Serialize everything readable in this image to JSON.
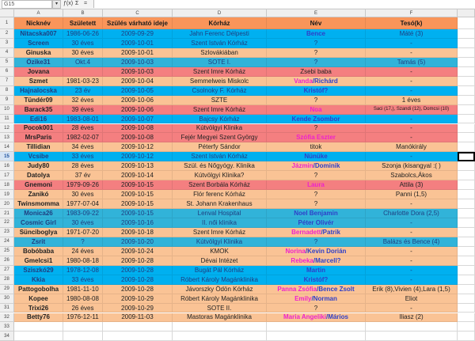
{
  "toolbar": {
    "name_box": "G15",
    "dropdown_icon": "▾",
    "function_wizard": "ƒ(x)",
    "sum": "Σ",
    "equals": "="
  },
  "columns": [
    "A",
    "B",
    "C",
    "D",
    "E",
    "F"
  ],
  "selected_cell": {
    "row": 15,
    "column": "G"
  },
  "colors": {
    "header": "#f9955a",
    "blue": "#00b0f0",
    "teal": "#31b3d9",
    "peach": "#fac395",
    "red": "#f47f80",
    "girl_name": "#ee22cc",
    "boy_name": "#2f3fc8",
    "blue_row_text": "#1f3f80",
    "default_text": "#222222"
  },
  "header": [
    "Nicknév",
    "Született",
    "Szülés várható ideje",
    "Kórház",
    "Név",
    "Tesó(k)"
  ],
  "rows": [
    {
      "n": 2,
      "fill": "blue",
      "a": "Nitacska007",
      "b": "1986-06-26",
      "c": "2009-09-29",
      "d": "Jahn Ferenc Délpesti",
      "e": [
        {
          "t": "Bence",
          "g": "boy"
        }
      ],
      "f": "Máté (3)"
    },
    {
      "n": 3,
      "fill": "blue",
      "a": "Screen",
      "b": "30 éves",
      "c": "2009-10-01",
      "d": "Szent István Kórház",
      "e": [
        {
          "t": "?"
        }
      ],
      "f": "-"
    },
    {
      "n": 4,
      "fill": "peach",
      "a": "Ginuska",
      "b": "30 éves",
      "c": "2009-10-01",
      "d": "Szlovákiában",
      "e": [
        {
          "t": "?"
        }
      ],
      "f": "-"
    },
    {
      "n": 5,
      "fill": "teal",
      "a": "Özike31",
      "b": "Okt.4",
      "c": "2009-10-03",
      "d": "SOTE I.",
      "e": [
        {
          "t": "?"
        }
      ],
      "f": "Tamás (5)"
    },
    {
      "n": 6,
      "fill": "red",
      "a": "Jovana",
      "b": "",
      "c": "2009-10-03",
      "d": "Szent Imre Kórház",
      "e": [
        {
          "t": "Zsebi baba"
        }
      ],
      "f": "-"
    },
    {
      "n": 7,
      "fill": "peach",
      "a": "Szmet",
      "b": "1981-03-23",
      "c": "2009-10-04",
      "d": "Semmelweis Miskolc",
      "e": [
        {
          "t": "Vanda",
          "g": "girl"
        },
        {
          "t": "/Richárd",
          "g": "boy"
        }
      ],
      "f": "-"
    },
    {
      "n": 8,
      "fill": "blue",
      "a": "Hajnalocska",
      "b": "23 év",
      "c": "2009-10-05",
      "d": "Csolnoky F. Kórház",
      "e": [
        {
          "t": "Kristóf?",
          "g": "boy"
        }
      ],
      "f": "-"
    },
    {
      "n": 9,
      "fill": "peach",
      "a": "Tündér09",
      "b": "32 éves",
      "c": "2009-10-06",
      "d": "SZTE",
      "e": [
        {
          "t": "?"
        }
      ],
      "f": "1 éves"
    },
    {
      "n": 10,
      "fill": "red",
      "a": "Barack35",
      "b": "39 éves",
      "c": "2009-10-06",
      "d": "Szent Imre Kórház",
      "e": [
        {
          "t": "Noa",
          "g": "girl"
        }
      ],
      "f": "Saci (17,), Szandi (12), Domcsi (10)",
      "f_small": true
    },
    {
      "n": 11,
      "fill": "blue",
      "a": "Edi16",
      "b": "1983-08-01",
      "c": "2009-10-07",
      "d": "Bajcsy Kórház",
      "e": [
        {
          "t": "Kende Zsombor",
          "g": "boy"
        }
      ],
      "f": "-"
    },
    {
      "n": 12,
      "fill": "red",
      "a": "Pocok001",
      "b": "28 éves",
      "c": "2009-10-08",
      "d": "Kútvölgyi Klinika",
      "e": [
        {
          "t": "?"
        }
      ],
      "f": "-"
    },
    {
      "n": 13,
      "fill": "red",
      "a": "MrsParis",
      "b": "1982-02-07",
      "c": "2009-10-08",
      "d": "Fejér Megyei Szent György",
      "e": [
        {
          "t": "Szófia Eszter",
          "g": "girl"
        }
      ],
      "f": "-"
    },
    {
      "n": 14,
      "fill": "peach",
      "a": "Tillidian",
      "b": "34 éves",
      "c": "2009-10-12",
      "d": "Péterfy Sándor",
      "e": [
        {
          "t": "titok"
        }
      ],
      "f": "Manókirály"
    },
    {
      "n": 15,
      "fill": "blue",
      "a": "Vcsibe",
      "b": "33 éves",
      "c": "2009-10-12",
      "d": "Szent István Kórház",
      "e": [
        {
          "t": "Nünüke",
          "g": "boy"
        }
      ],
      "f": "-"
    },
    {
      "n": 16,
      "fill": "peach",
      "a": "Judy80",
      "b": "28 éves",
      "c": "2009-10-13",
      "d": "Szül. és Nőgyógy. Klinika",
      "e": [
        {
          "t": "Jázmin",
          "g": "girl"
        },
        {
          "t": "/Dominik",
          "g": "boy"
        }
      ],
      "f": "Szonja (kisangyal :( )"
    },
    {
      "n": 17,
      "fill": "peach",
      "a": "Datolya",
      "b": "37 év",
      "c": "2009-10-14",
      "d": "Kútvölgyi Klinika?",
      "e": [
        {
          "t": "?"
        }
      ],
      "f": "Szabolcs,Ákos"
    },
    {
      "n": 18,
      "fill": "red",
      "a": "Gnemoni",
      "b": "1979-09-26",
      "c": "2009-10-15",
      "d": "Szent Borbála Kórház",
      "e": [
        {
          "t": "Laura",
          "g": "girl"
        }
      ],
      "f": "Attila (3)"
    },
    {
      "n": 19,
      "fill": "peach",
      "a": "Zanikó",
      "b": "30 éves",
      "c": "2009-10-15",
      "d": "Flór ferenc Kórház",
      "e": [
        {
          "t": "?"
        }
      ],
      "f": "Panni (1,5)"
    },
    {
      "n": 20,
      "fill": "peach",
      "a": "Twinsmomma",
      "b": "1977-07-04",
      "c": "2009-10-15",
      "d": "St. Johann Krakenhaus",
      "e": [
        {
          "t": "?"
        }
      ],
      "f": "-"
    },
    {
      "n": 21,
      "fill": "teal",
      "a": "Monica26",
      "b": "1983-09-22",
      "c": "2009-10-15",
      "d": "Lenval Hospital",
      "e": [
        {
          "t": "Noel Benjamin",
          "g": "boy"
        }
      ],
      "f": "Charlotte Dora (2,5)"
    },
    {
      "n": 22,
      "fill": "teal",
      "a": "Cosmic Girl",
      "b": "30 éves",
      "c": "2009-10-16",
      "d": "II. női klinika",
      "e": [
        {
          "t": "Péter Olivér",
          "g": "boy"
        }
      ],
      "f": "-"
    },
    {
      "n": 23,
      "fill": "peach",
      "a": "Sünciboglya",
      "b": "1971-07-20",
      "c": "2009-10-18",
      "d": "Szent Imre Kórház",
      "e": [
        {
          "t": "Bernadett",
          "g": "girl"
        },
        {
          "t": "/Patrik",
          "g": "boy"
        }
      ],
      "f": "-"
    },
    {
      "n": 24,
      "fill": "teal",
      "a": "Zsrit",
      "b": "?",
      "c": "2009-10-20",
      "d": "Kútvölgyi Klinika",
      "e": [
        {
          "t": "?"
        }
      ],
      "f": "Balázs és Bence (4)"
    },
    {
      "n": 25,
      "fill": "peach",
      "a": "Bobóbaba",
      "b": "24 éves",
      "c": "2009-10-24",
      "d": "KMOK",
      "e": [
        {
          "t": "Norina",
          "g": "girl"
        },
        {
          "t": "/Kevin Dorián",
          "g": "boy"
        }
      ],
      "f": "-"
    },
    {
      "n": 26,
      "fill": "peach",
      "a": "Gmelcsi1",
      "b": "1980-08-18",
      "c": "2009-10-28",
      "d": "Dévai Intézet",
      "e": [
        {
          "t": "Rebeka",
          "g": "girl"
        },
        {
          "t": "/Marcell?",
          "g": "boy"
        }
      ],
      "f": "-"
    },
    {
      "n": 27,
      "fill": "blue",
      "a": "Sziszkó29",
      "b": "1978-12-08",
      "c": "2009-10-28",
      "d": "Bugát Pál Kórház",
      "e": [
        {
          "t": "Martin",
          "g": "boy"
        }
      ],
      "f": "-"
    },
    {
      "n": 28,
      "fill": "blue",
      "a": "Kkia",
      "b": "33 éves",
      "c": "2009-10-28",
      "d": "Róbert Károly Magánklinika",
      "e": [
        {
          "t": "Kristóf?",
          "g": "boy"
        }
      ],
      "f": "-"
    },
    {
      "n": 29,
      "fill": "peach",
      "a": "Pattogobolha",
      "b": "1981-11-10",
      "c": "2009-10-28",
      "d": "Jávorszky Ödön Kórház",
      "e": [
        {
          "t": "Panna Zsófia",
          "g": "girl"
        },
        {
          "t": "/Bence Zsolt",
          "g": "boy"
        }
      ],
      "f": "Erik (8),Vivien (4),Lara (1,5)"
    },
    {
      "n": 30,
      "fill": "peach",
      "a": "Kopee",
      "b": "1980-08-08",
      "c": "2009-10-29",
      "d": "Róbert Károly Magánklinika",
      "e": [
        {
          "t": "Emily",
          "g": "girl"
        },
        {
          "t": "/Norman",
          "g": "boy"
        }
      ],
      "f": "Eliot"
    },
    {
      "n": 31,
      "fill": "peach",
      "a": "Trixi26",
      "b": "26 éves",
      "c": "2009-10-29",
      "d": "SOTE II.",
      "e": [
        {
          "t": "?"
        }
      ],
      "f": "-"
    },
    {
      "n": 32,
      "fill": "peach",
      "a": "Betty76",
      "b": "1976-12-11",
      "c": "2009-11-03",
      "d": "Mastoras Magánklinika",
      "e": [
        {
          "t": "Maria Angeliki",
          "g": "girl"
        },
        {
          "t": "/Mários",
          "g": "boy"
        }
      ],
      "f": "Iliasz (2)"
    }
  ],
  "empty_rows": [
    33,
    34
  ]
}
